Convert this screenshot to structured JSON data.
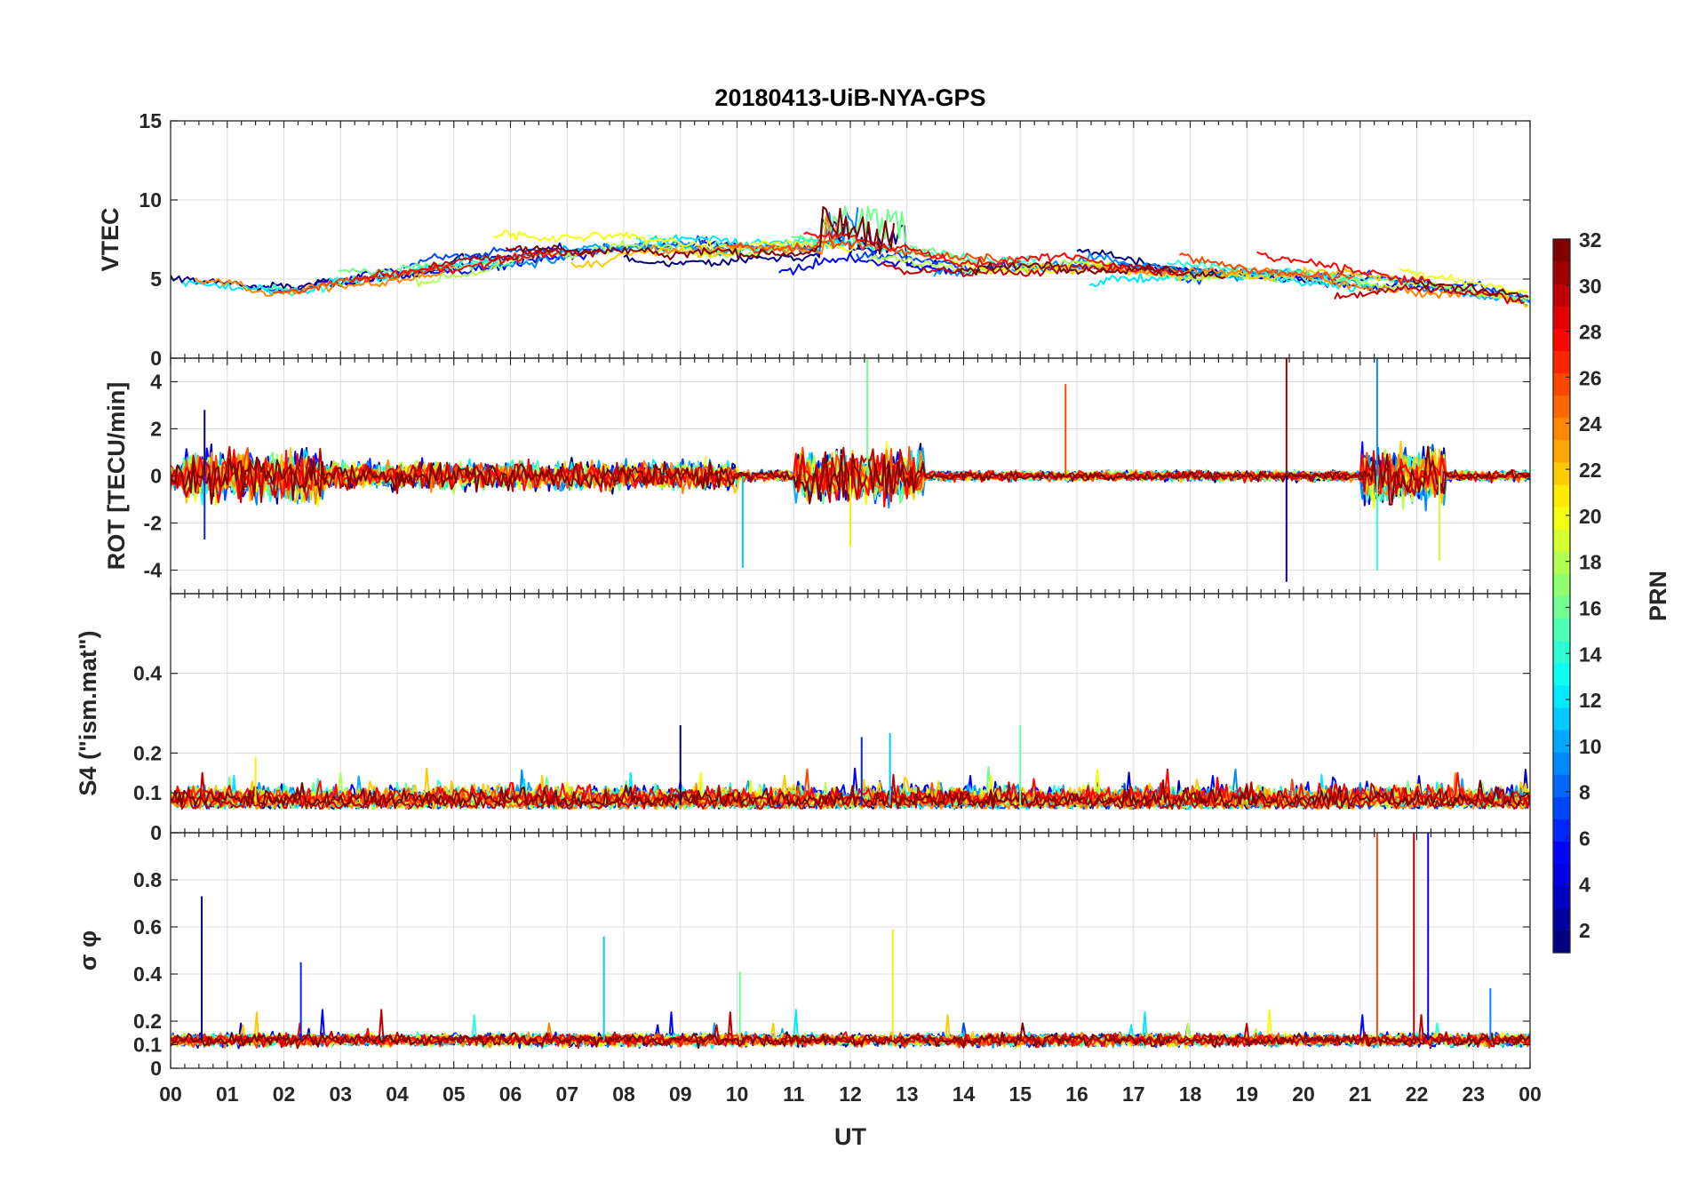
{
  "chart_data": {
    "type": "line",
    "title": "20180413-UiB-NYA-GPS",
    "xlabel": "UT",
    "x_ticks": [
      "00",
      "01",
      "02",
      "03",
      "04",
      "05",
      "06",
      "07",
      "08",
      "09",
      "10",
      "11",
      "12",
      "13",
      "14",
      "15",
      "16",
      "17",
      "18",
      "19",
      "20",
      "21",
      "22",
      "23",
      "00"
    ],
    "xlim": [
      0,
      24
    ],
    "panels": [
      {
        "id": "vtec",
        "ylabel": "VTEC",
        "ylim": [
          0,
          15
        ],
        "yticks": [
          0,
          5,
          10,
          15
        ],
        "description_series": "per-satellite VTEC traces, mostly 3 to 8 TECU, peaks near 10 TECU around 12 UT",
        "baseline_profile": [
          [
            0,
            4.5
          ],
          [
            2,
            4.2
          ],
          [
            4,
            5.2
          ],
          [
            6,
            6.2
          ],
          [
            8,
            7.0
          ],
          [
            10,
            6.8
          ],
          [
            12,
            7.0
          ],
          [
            14,
            6.0
          ],
          [
            16,
            6.0
          ],
          [
            18,
            5.5
          ],
          [
            20,
            5.2
          ],
          [
            22,
            4.6
          ],
          [
            24,
            3.8
          ]
        ]
      },
      {
        "id": "rot",
        "ylabel": "ROT [TECU/min]",
        "ylim": [
          -5,
          5
        ],
        "yticks": [
          -4,
          -2,
          0,
          2,
          4
        ],
        "notable_spikes": [
          [
            0.6,
            2.8
          ],
          [
            0.6,
            -2.7
          ],
          [
            10.1,
            -3.9
          ],
          [
            12.3,
            5.1
          ],
          [
            12.0,
            -3.0
          ],
          [
            15.8,
            3.9
          ],
          [
            19.7,
            5.0
          ],
          [
            19.7,
            -4.5
          ],
          [
            21.3,
            5.0
          ],
          [
            21.3,
            -4.0
          ],
          [
            22.4,
            -3.6
          ]
        ]
      },
      {
        "id": "s4",
        "ylabel": "S4 (\"ism.mat\")",
        "ylim": [
          0,
          0.6
        ],
        "yticks": [
          0,
          0.1,
          0.2,
          0.4
        ],
        "notable_spikes": [
          [
            9.0,
            0.27
          ],
          [
            12.2,
            0.24
          ],
          [
            12.7,
            0.25
          ],
          [
            15.0,
            0.27
          ],
          [
            1.5,
            0.19
          ]
        ]
      },
      {
        "id": "sigma_phi",
        "ylabel": "σ φ",
        "ylim": [
          0,
          1
        ],
        "yticks": [
          0,
          0.1,
          0.2,
          0.4,
          0.6,
          0.8
        ],
        "notable_spikes": [
          [
            0.55,
            0.73
          ],
          [
            2.3,
            0.45
          ],
          [
            7.65,
            0.56
          ],
          [
            10.05,
            0.41
          ],
          [
            12.75,
            0.59
          ],
          [
            21.3,
            1.0
          ],
          [
            21.95,
            1.0
          ],
          [
            22.2,
            1.0
          ],
          [
            23.3,
            0.34
          ]
        ]
      }
    ],
    "colorbar": {
      "label": "PRN",
      "range": [
        1,
        32
      ],
      "ticks": [
        2,
        4,
        6,
        8,
        10,
        12,
        14,
        16,
        18,
        20,
        22,
        24,
        26,
        28,
        30,
        32
      ],
      "colormap": "jet"
    },
    "series_prn": [
      1,
      3,
      5,
      7,
      9,
      10,
      12,
      14,
      16,
      18,
      20,
      22,
      24,
      26,
      28,
      30,
      32
    ]
  }
}
